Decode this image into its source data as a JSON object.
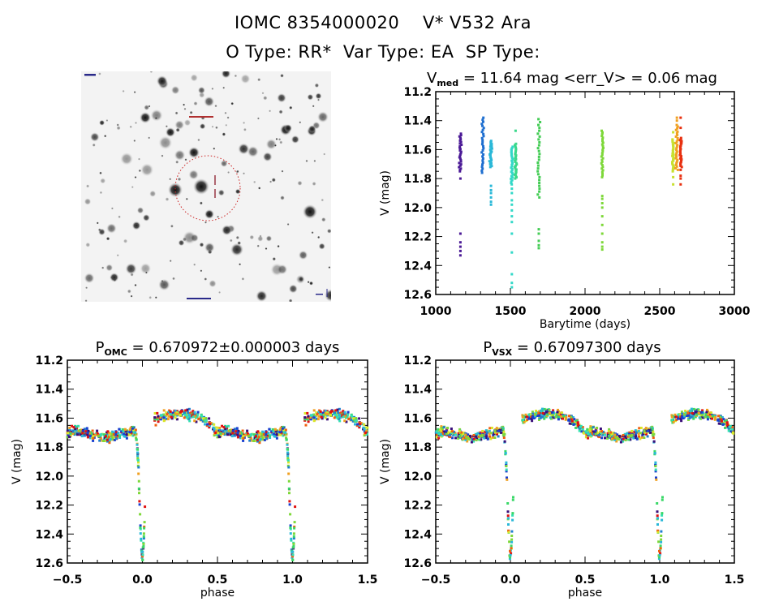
{
  "header": {
    "title_line1": "IOMC 8354000020    V* V532 Ara",
    "title_line2": "O Type: RR*  Var Type: EA  SP Type:"
  },
  "starfield": {
    "description": "DSS-like negative star field image centered on target",
    "circle_color": "#cc2222",
    "marker_color": "#8b1a2b"
  },
  "chart_data": [
    {
      "id": "lightcurve-time",
      "type": "scatter",
      "title_prefix": "V",
      "title_sub": "med",
      "title_rest": " = 11.64 mag <err_V> = 0.06 mag",
      "xlabel": "Barytime (days)",
      "ylabel": "V (mag)",
      "xlim": [
        1000,
        3000
      ],
      "ylim": [
        11.2,
        12.6
      ],
      "y_inverted": true,
      "xticks": [
        1000,
        1500,
        2000,
        2500,
        3000
      ],
      "yticks": [
        11.2,
        11.4,
        11.6,
        11.8,
        12.0,
        12.2,
        12.4,
        12.6
      ],
      "grid": false,
      "series": [
        {
          "name": "epoch-1",
          "color": "#4b1a96",
          "x": 1165,
          "y_main": [
            11.49,
            11.75
          ],
          "y_extra": [
            11.8,
            12.18,
            12.24,
            12.27,
            12.3,
            12.33
          ]
        },
        {
          "name": "epoch-2",
          "color": "#1f6fd0",
          "x": 1315,
          "y_main": [
            11.38,
            11.76
          ],
          "y_extra": []
        },
        {
          "name": "epoch-3",
          "color": "#2ab8d8",
          "x": 1370,
          "y_main": [
            11.54,
            11.72
          ],
          "y_extra": [
            11.85,
            11.88,
            11.9,
            11.93,
            11.96,
            11.98
          ]
        },
        {
          "name": "epoch-4",
          "color": "#33d8c8",
          "x": 1510,
          "y_main": [
            11.58,
            11.84
          ],
          "y_extra": [
            11.87,
            11.9,
            11.95,
            11.98,
            12.02,
            12.06,
            12.1,
            12.18,
            12.31,
            12.46,
            12.52,
            12.55
          ]
        },
        {
          "name": "epoch-5",
          "color": "#3ad88a",
          "x": 1535,
          "y_main": [
            11.56,
            11.8
          ],
          "y_extra": [
            11.47
          ]
        },
        {
          "name": "epoch-6",
          "color": "#44cc55",
          "x": 1690,
          "y_main": [
            11.39,
            11.93
          ],
          "y_extra": [
            12.15,
            12.18,
            12.23,
            12.26,
            12.28
          ]
        },
        {
          "name": "epoch-7",
          "color": "#7ed83a",
          "x": 2115,
          "y_main": [
            11.47,
            11.79
          ],
          "y_extra": [
            11.92,
            11.94,
            11.97,
            12.0,
            12.06,
            12.12,
            12.18,
            12.24,
            12.27,
            12.29
          ]
        },
        {
          "name": "epoch-8",
          "color": "#c8e030",
          "x": 2590,
          "y_main": [
            11.53,
            11.75
          ],
          "y_extra": [
            11.48,
            11.79,
            11.84
          ]
        },
        {
          "name": "epoch-9",
          "color": "#f0a020",
          "x": 2615,
          "y_main": [
            11.43,
            11.74
          ],
          "y_extra": [
            11.38,
            11.4
          ]
        },
        {
          "name": "epoch-10",
          "color": "#e83010",
          "x": 2640,
          "y_main": [
            11.52,
            11.72
          ],
          "y_extra": [
            11.38,
            11.45,
            11.74,
            11.78,
            11.8,
            11.84
          ]
        }
      ]
    },
    {
      "id": "phase-omc",
      "type": "scatter",
      "title_prefix": "P",
      "title_sub": "OMC",
      "title_rest": " = 0.670972±0.000003 days",
      "xlabel": "phase",
      "ylabel": "V (mag)",
      "xlim": [
        -0.5,
        1.5
      ],
      "ylim": [
        11.2,
        12.6
      ],
      "y_inverted": true,
      "xticks": [
        -0.5,
        0.0,
        0.5,
        1.0,
        1.5
      ],
      "yticks": [
        11.2,
        11.4,
        11.6,
        11.8,
        12.0,
        12.2,
        12.4,
        12.6
      ],
      "grid": false,
      "period_days": 0.670972,
      "light_curve": {
        "baseline_mag": 11.65,
        "primary_eclipse": {
          "phase": 0.0,
          "depth_mag": 0.9,
          "min_mag": 12.55
        },
        "secondary_eclipse": {
          "phase": 0.5,
          "depth_mag": 0.1
        },
        "max_brightness_mag": 11.4,
        "phase_gap": [
          0.02,
          0.08
        ]
      },
      "series_colors": [
        "#3a0f7a",
        "#1a3fd0",
        "#1f7fd0",
        "#2ab8d8",
        "#33e0b0",
        "#3ad868",
        "#7ed83a",
        "#d8e828",
        "#f0a020",
        "#f06010",
        "#e01010"
      ]
    },
    {
      "id": "phase-vsx",
      "type": "scatter",
      "title_prefix": "P",
      "title_sub": "VSX",
      "title_rest": " = 0.67097300 days",
      "xlabel": "phase",
      "ylabel": "V (mag)",
      "xlim": [
        -0.5,
        1.5
      ],
      "ylim": [
        11.2,
        12.6
      ],
      "y_inverted": true,
      "xticks": [
        -0.5,
        0.0,
        0.5,
        1.0,
        1.5
      ],
      "yticks": [
        11.2,
        11.4,
        11.6,
        11.8,
        12.0,
        12.2,
        12.4,
        12.6
      ],
      "grid": false,
      "period_days": 0.670973,
      "light_curve": {
        "baseline_mag": 11.65,
        "primary_eclipse": {
          "phase": 0.0,
          "depth_mag": 0.9,
          "min_mag": 12.55
        },
        "secondary_eclipse": {
          "phase": 0.5,
          "depth_mag": 0.1
        },
        "max_brightness_mag": 11.4,
        "phase_gap": [
          0.02,
          0.08
        ]
      },
      "series_colors": [
        "#3a0f7a",
        "#1a3fd0",
        "#1f7fd0",
        "#2ab8d8",
        "#33e0b0",
        "#3ad868",
        "#7ed83a",
        "#d8e828",
        "#f0a020",
        "#f06010",
        "#e01010"
      ]
    }
  ]
}
